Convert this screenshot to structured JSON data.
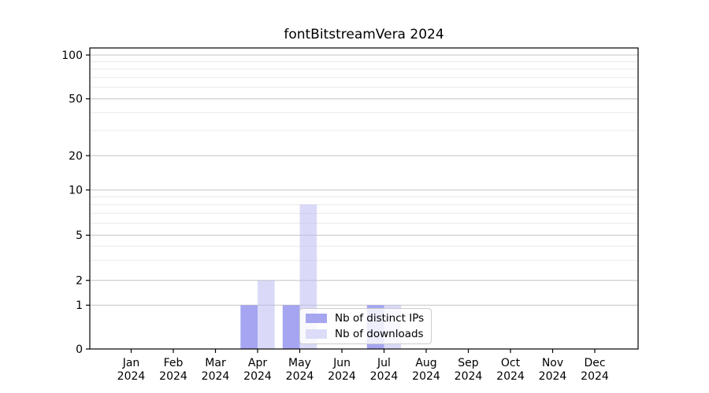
{
  "title": "fontBitstreamVera 2024",
  "chart_data": {
    "type": "bar",
    "title": "fontBitstreamVera 2024",
    "categories": [
      "Jan",
      "Feb",
      "Mar",
      "Apr",
      "May",
      "Jun",
      "Jul",
      "Aug",
      "Sep",
      "Oct",
      "Nov",
      "Dec"
    ],
    "year": "2024",
    "series": [
      {
        "name": "Nb of distinct IPs",
        "values": [
          0,
          0,
          0,
          1,
          1,
          0,
          1,
          0,
          0,
          0,
          0,
          0
        ],
        "fill": "rgba(149,149,238,0.85)",
        "swatch": "#a6a6f0"
      },
      {
        "name": "Nb of downloads",
        "values": [
          0,
          0,
          0,
          2,
          8,
          0,
          1,
          0,
          0,
          0,
          0,
          0
        ],
        "fill": "rgba(187,187,243,0.55)",
        "swatch": "#dcdcf8"
      }
    ],
    "yticks": [
      0,
      1,
      2,
      5,
      10,
      20,
      50,
      100
    ],
    "minor_yticks": [
      3,
      4,
      6,
      7,
      8,
      9,
      30,
      40,
      60,
      70,
      80,
      90
    ],
    "xlabel": "",
    "ylabel": "",
    "yscale": "symlog",
    "ylim": [
      0,
      110
    ],
    "grid": true,
    "legend_position": "lower center",
    "colors": {
      "major_grid": "#c3c3c3",
      "minor_grid": "#e9e9e9",
      "axis": "#000000",
      "legend_border": "#cccccc"
    }
  }
}
